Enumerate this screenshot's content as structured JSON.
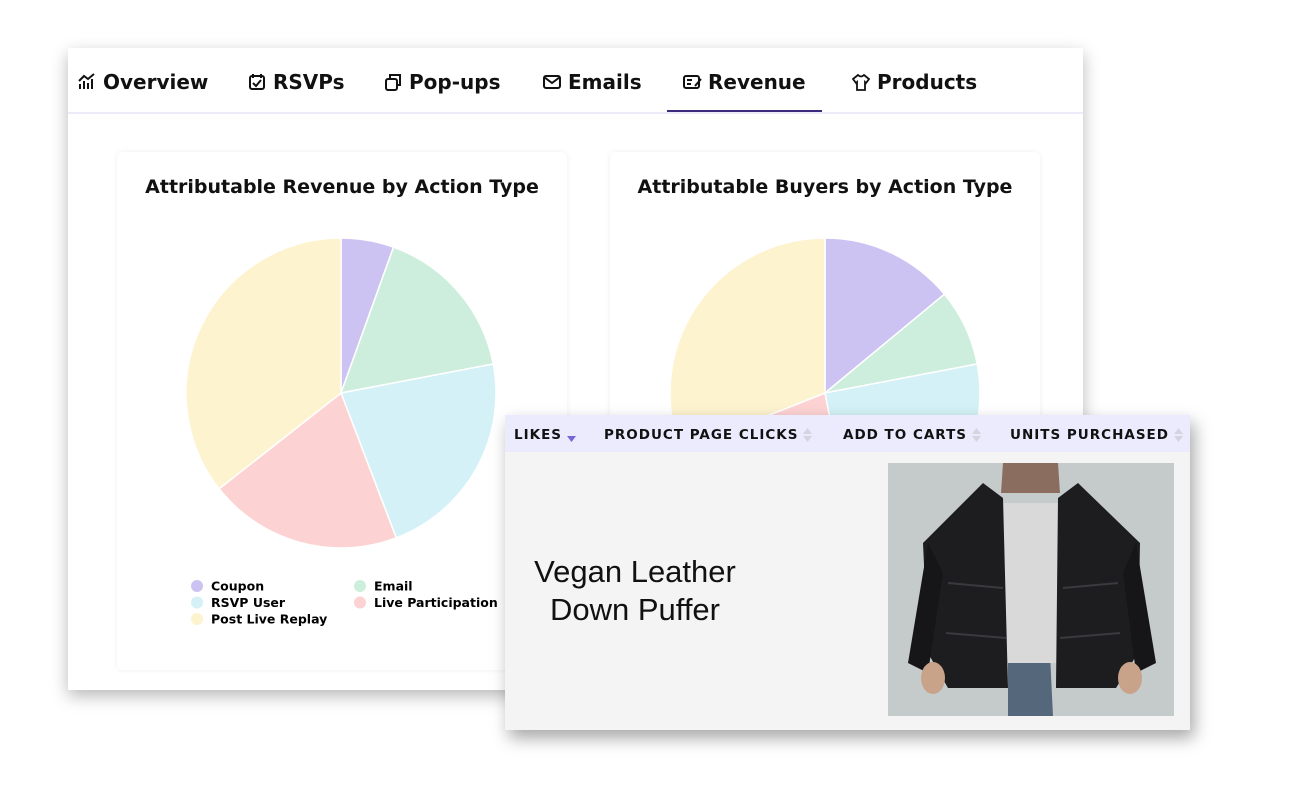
{
  "tabs": [
    "Overview",
    "RSVPs",
    "Pop-ups",
    "Emails",
    "Revenue",
    "Products"
  ],
  "active_tab": 4,
  "chart_data": [
    {
      "type": "pie",
      "title": "Attributable Revenue by Action Type",
      "categories": [
        "Coupon",
        "Email",
        "RSVP User",
        "Live Participation",
        "Post Live Replay"
      ],
      "values": [
        5.5,
        16.5,
        22.2,
        20.2,
        35.6
      ],
      "colors": [
        "#cdc3f2",
        "#cdeedd",
        "#d3f1f6",
        "#fdd2d2",
        "#fdf3cf"
      ]
    },
    {
      "type": "pie",
      "title": "Attributable Buyers by Action Type",
      "values": [
        14,
        8,
        25,
        22,
        31
      ],
      "colors": [
        "#cdc3f2",
        "#cdeedd",
        "#d3f1f6",
        "#fdd2d2",
        "#fdf3cf"
      ]
    }
  ],
  "table": {
    "headers": [
      "LIKES",
      "PRODUCT PAGE CLICKS",
      "ADD TO CARTS",
      "UNITS PURCHASED"
    ],
    "sorted_column": 0,
    "product_name": "Vegan Leather Down Puffer"
  }
}
